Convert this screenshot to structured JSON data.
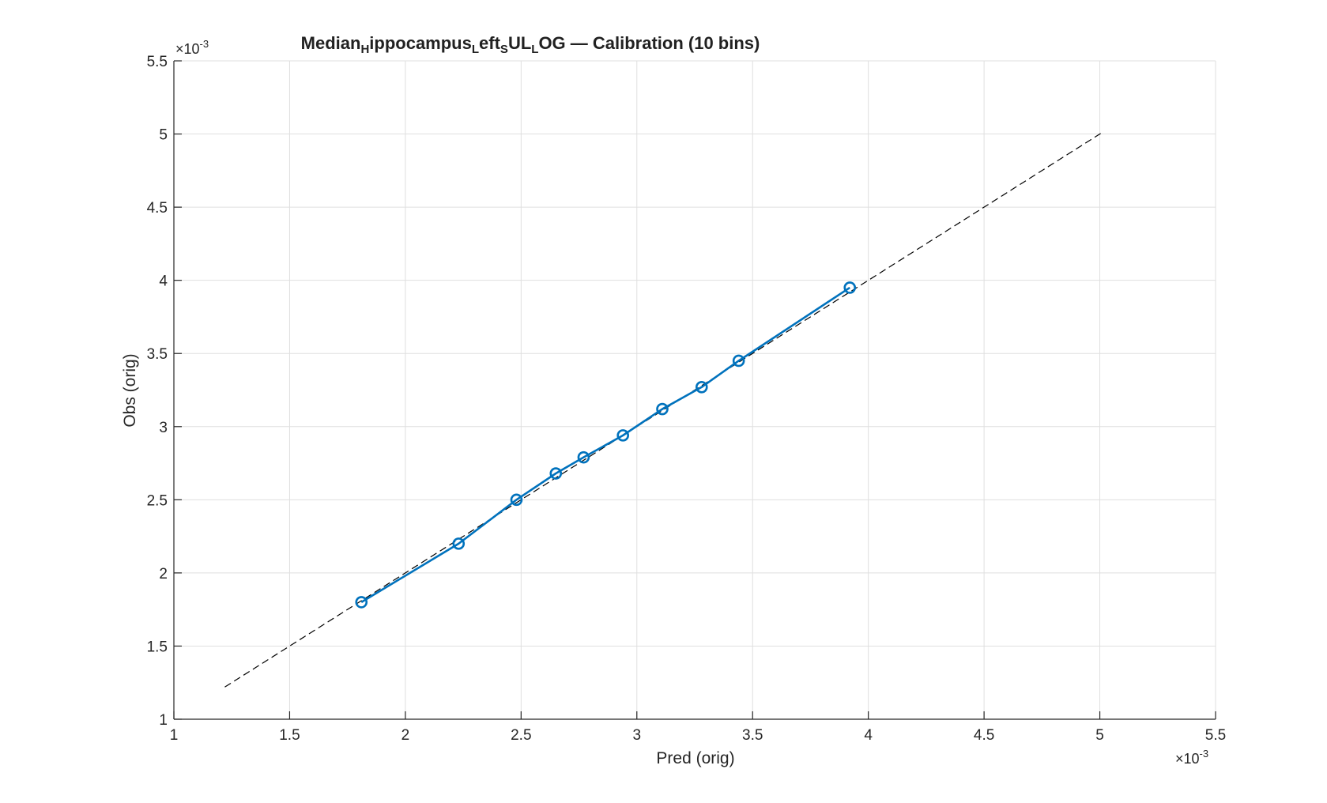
{
  "chart_data": {
    "type": "line",
    "title": {
      "parts": [
        {
          "text": "Median",
          "sub": false
        },
        {
          "text": "H",
          "sub": true
        },
        {
          "text": "ippocampus",
          "sub": false
        },
        {
          "text": "L",
          "sub": true
        },
        {
          "text": "eft",
          "sub": false
        },
        {
          "text": "S",
          "sub": true
        },
        {
          "text": "UL",
          "sub": false
        },
        {
          "text": "L",
          "sub": true
        },
        {
          "text": "OG  —  Calibration  (10  bins)",
          "sub": false
        }
      ]
    },
    "xlabel": "Pred (orig)",
    "ylabel": "Obs (orig)",
    "x_exponent": {
      "base": "×10",
      "power": "-3"
    },
    "y_exponent": {
      "base": "×10",
      "power": "-3"
    },
    "xlim": [
      1,
      5.5
    ],
    "ylim": [
      1,
      5.5
    ],
    "xticks": [
      1,
      1.5,
      2,
      2.5,
      3,
      3.5,
      4,
      4.5,
      5,
      5.5
    ],
    "yticks": [
      1,
      1.5,
      2,
      2.5,
      3,
      3.5,
      4,
      4.5,
      5,
      5.5
    ],
    "xtick_labels": [
      "1",
      "1.5",
      "2",
      "2.5",
      "3",
      "3.5",
      "4",
      "4.5",
      "5",
      "5.5"
    ],
    "ytick_labels": [
      "1",
      "1.5",
      "2",
      "2.5",
      "3",
      "3.5",
      "4",
      "4.5",
      "5",
      "5.5"
    ],
    "grid": true,
    "series": [
      {
        "x": [
          1.81,
          2.23,
          2.48,
          2.65,
          2.77,
          2.94,
          3.11,
          3.28,
          3.44,
          3.92
        ],
        "y": [
          1.8,
          2.2,
          2.5,
          2.68,
          2.79,
          2.94,
          3.12,
          3.27,
          3.45,
          3.95
        ],
        "color": "#0072BD",
        "marker": "circle"
      }
    ],
    "reference_line": {
      "x": [
        1.22,
        5.01
      ],
      "y": [
        1.22,
        5.01
      ],
      "style": "dashed",
      "color": "#000000"
    }
  }
}
